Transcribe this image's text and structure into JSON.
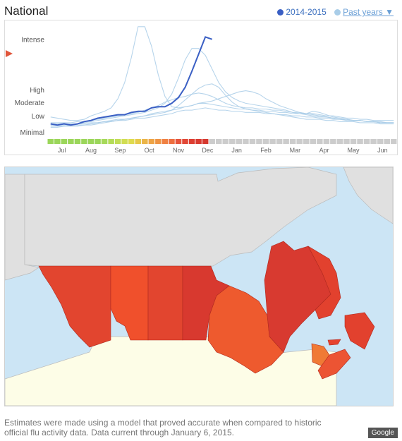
{
  "header": {
    "title": "National",
    "legend_current": "2014-2015",
    "legend_past": "Past years ▼",
    "current_color": "#3a5fc4",
    "past_color": "#a9cde8"
  },
  "chart_data": {
    "type": "line",
    "ylabels": [
      "Intense",
      "High",
      "Moderate",
      "Low",
      "Minimal"
    ],
    "months": [
      "Jul",
      "Aug",
      "Sep",
      "Oct",
      "Nov",
      "Dec",
      "Jan",
      "Feb",
      "Mar",
      "Apr",
      "May",
      "Jun"
    ],
    "y_scale": "activity index 0–100 (0 = bottom, 100 = chart top)",
    "y_levels": {
      "Intense": 86,
      "High": 42,
      "Moderate": 31,
      "Low": 19,
      "Minimal": 5
    },
    "week_colors": [
      "#9bd65a",
      "#9bd65a",
      "#9bd65a",
      "#9bd65a",
      "#9bd65a",
      "#9bd65a",
      "#9bd65a",
      "#9bd65a",
      "#a6d95a",
      "#b4dc58",
      "#c2dd56",
      "#d1dd52",
      "#dfdb4e",
      "#e7c94a",
      "#ebb548",
      "#eea446",
      "#ef9444",
      "#f08142",
      "#ed6f40",
      "#e6543c",
      "#e14836",
      "#dd3e32",
      "#d93a30",
      "#d6392f",
      "#cccccc",
      "#cccccc",
      "#cccccc",
      "#cccccc",
      "#cccccc",
      "#cccccc",
      "#cccccc",
      "#cccccc",
      "#cccccc",
      "#cccccc",
      "#cccccc",
      "#cccccc",
      "#cccccc",
      "#cccccc",
      "#cccccc",
      "#cccccc",
      "#cccccc",
      "#cccccc",
      "#cccccc",
      "#cccccc",
      "#cccccc",
      "#cccccc",
      "#cccccc",
      "#cccccc",
      "#cccccc",
      "#cccccc",
      "#cccccc",
      "#cccccc"
    ],
    "current_series": [
      12,
      11,
      12,
      11,
      12,
      14,
      15,
      17,
      18,
      19,
      20,
      20,
      22,
      23,
      23,
      26,
      27,
      27,
      30,
      35,
      44,
      58,
      73,
      88,
      86
    ],
    "past_series": [
      [
        18,
        17,
        16,
        15,
        15,
        16,
        19,
        21,
        23,
        26,
        34,
        48,
        70,
        97,
        97,
        80,
        55,
        36,
        27,
        26,
        27,
        28,
        30,
        31,
        32,
        34,
        36,
        38,
        40,
        41,
        40,
        38,
        34,
        31,
        28,
        26,
        24,
        22,
        21,
        20,
        19,
        18,
        17,
        16,
        16,
        15,
        15,
        14,
        14,
        13,
        13,
        13
      ],
      [
        10,
        10,
        10,
        11,
        11,
        11,
        12,
        13,
        14,
        15,
        16,
        16,
        17,
        18,
        19,
        20,
        21,
        22,
        24,
        28,
        33,
        38,
        43,
        46,
        47,
        44,
        37,
        31,
        27,
        25,
        24,
        23,
        22,
        21,
        20,
        19,
        18,
        17,
        16,
        16,
        16,
        15,
        15,
        14,
        14,
        14,
        13,
        13,
        13,
        12,
        12,
        12
      ],
      [
        12,
        12,
        12,
        12,
        12,
        13,
        14,
        15,
        16,
        17,
        18,
        19,
        20,
        21,
        22,
        24,
        26,
        30,
        38,
        52,
        68,
        78,
        78,
        72,
        60,
        48,
        40,
        35,
        32,
        30,
        29,
        28,
        27,
        26,
        25,
        24,
        22,
        21,
        21,
        23,
        22,
        20,
        18,
        17,
        16,
        15,
        15,
        14,
        14,
        13,
        13,
        13
      ],
      [
        13,
        13,
        13,
        13,
        14,
        14,
        15,
        16,
        17,
        18,
        19,
        20,
        21,
        22,
        24,
        26,
        28,
        31,
        33,
        35,
        36,
        38,
        39,
        38,
        36,
        33,
        30,
        28,
        27,
        26,
        26,
        25,
        25,
        24,
        24,
        23,
        22,
        22,
        21,
        21,
        20,
        19,
        19,
        18,
        17,
        17,
        16,
        16,
        15,
        15,
        15,
        15
      ],
      [
        9,
        9,
        10,
        10,
        10,
        11,
        11,
        12,
        13,
        14,
        15,
        16,
        17,
        18,
        19,
        21,
        22,
        23,
        24,
        25,
        27,
        28,
        30,
        30,
        29,
        28,
        27,
        26,
        25,
        25,
        24,
        24,
        23,
        23,
        22,
        22,
        21,
        21,
        20,
        19,
        18,
        18,
        17,
        16,
        16,
        15,
        15,
        14,
        14,
        13,
        13,
        13
      ],
      [
        11,
        11,
        11,
        12,
        12,
        12,
        13,
        13,
        14,
        14,
        15,
        15,
        16,
        17,
        17,
        18,
        19,
        20,
        21,
        23,
        24,
        24,
        25,
        26,
        25,
        24,
        24,
        23,
        23,
        22,
        22,
        22,
        21,
        21,
        20,
        20,
        19,
        19,
        18,
        18,
        17,
        17,
        16,
        16,
        15,
        15,
        15,
        14,
        14,
        14,
        13,
        13
      ]
    ]
  },
  "map": {
    "ocean_color": "#cce5f5",
    "land_color": "#e0e0e0",
    "usa_color": "#fdfde7",
    "provinces": [
      {
        "name": "British Columbia",
        "color": "#e2452f"
      },
      {
        "name": "Alberta",
        "color": "#f0502c"
      },
      {
        "name": "Saskatchewan",
        "color": "#e2452f"
      },
      {
        "name": "Manitoba",
        "color": "#d8392f"
      },
      {
        "name": "Ontario",
        "color": "#ee5a2e"
      },
      {
        "name": "Quebec",
        "color": "#d83a30"
      },
      {
        "name": "Newfoundland and Labrador",
        "color": "#e2412e"
      },
      {
        "name": "New Brunswick",
        "color": "#f07a35"
      },
      {
        "name": "Nova Scotia",
        "color": "#ec5433"
      },
      {
        "name": "Prince Edward Island",
        "color": "#e7432f"
      }
    ]
  },
  "footnote": "Estimates were made using a model that proved accurate when compared to historic official flu activity data. Data current through January 6, 2015.",
  "google_logo": "Google"
}
